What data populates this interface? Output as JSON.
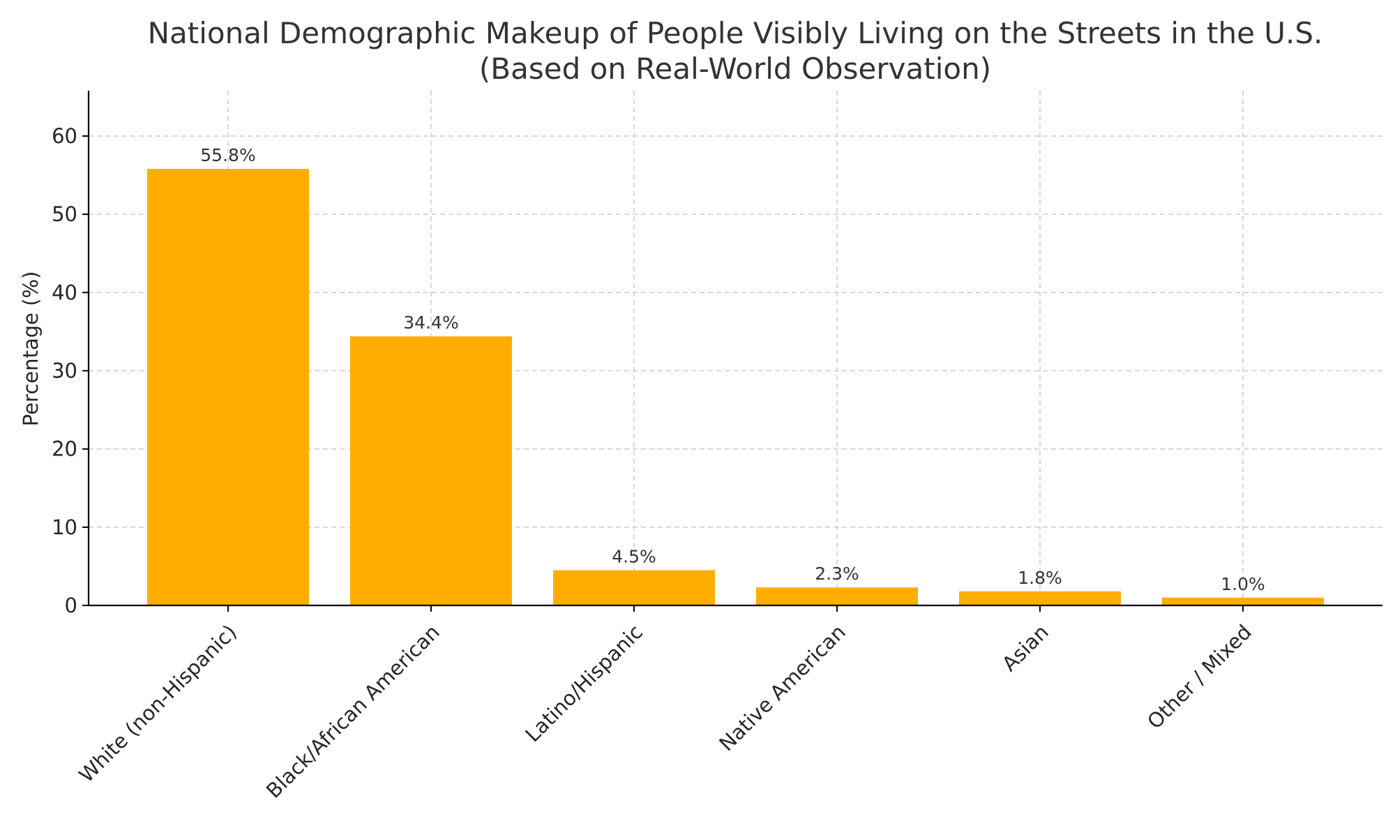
{
  "chart_data": {
    "type": "bar",
    "title": "National Demographic Makeup of People Visibly Living on the Streets in the U.S.",
    "subtitle": "(Based on Real-World Observation)",
    "xlabel": "",
    "ylabel": "Percentage (%)",
    "categories": [
      "White (non-Hispanic)",
      "Black/African American",
      "Latino/Hispanic",
      "Native American",
      "Asian",
      "Other / Mixed"
    ],
    "values": [
      55.8,
      34.4,
      4.5,
      2.3,
      1.8,
      1.0
    ],
    "data_labels": [
      "55.8%",
      "34.4%",
      "4.5%",
      "2.3%",
      "1.8%",
      "1.0%"
    ],
    "ylim": [
      0,
      65.8
    ],
    "yticks": [
      0,
      10,
      20,
      30,
      40,
      50,
      60
    ],
    "grid": true,
    "bar_color": "#FFAE00"
  }
}
